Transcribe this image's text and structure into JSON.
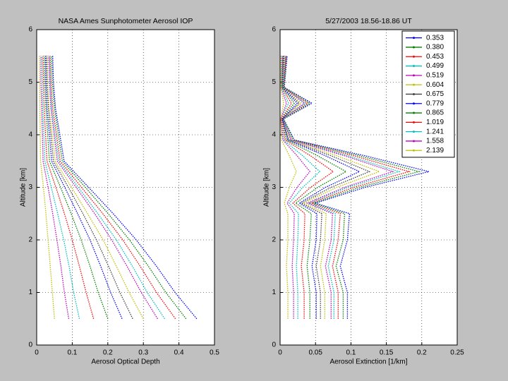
{
  "chart_data": [
    {
      "type": "line",
      "title": "NASA Ames Sunphotometer Aerosol IOP",
      "xlabel": "Aerosol Optical Depth",
      "ylabel": "Altitude [km]",
      "xlim": [
        0,
        0.5
      ],
      "xticks": [
        0,
        0.1,
        0.2,
        0.3,
        0.4,
        0.5
      ],
      "ylim": [
        0,
        6
      ],
      "yticks": [
        0,
        1,
        2,
        3,
        4,
        5,
        6
      ],
      "grid": true,
      "altitude": [
        0.5,
        1,
        1.5,
        2,
        2.5,
        3,
        3.5,
        4,
        4.5,
        5,
        5.5
      ],
      "series": [
        {
          "color": "#0000ff",
          "values": [
            0.45,
            0.389,
            0.337,
            0.28,
            0.215,
            0.146,
            0.077,
            0.065,
            0.053,
            0.047,
            0.045
          ]
        },
        {
          "color": "#008000",
          "values": [
            0.42,
            0.363,
            0.314,
            0.261,
            0.201,
            0.137,
            0.072,
            0.061,
            0.05,
            0.044,
            0.042
          ]
        },
        {
          "color": "#ff0000",
          "values": [
            0.39,
            0.337,
            0.291,
            0.242,
            0.186,
            0.126,
            0.066,
            0.056,
            0.045,
            0.04,
            0.038
          ]
        },
        {
          "color": "#00bfbf",
          "values": [
            0.36,
            0.311,
            0.269,
            0.224,
            0.172,
            0.117,
            0.062,
            0.052,
            0.042,
            0.038,
            0.036
          ]
        },
        {
          "color": "#bf00bf",
          "values": [
            0.34,
            0.294,
            0.254,
            0.211,
            0.163,
            0.111,
            0.058,
            0.049,
            0.04,
            0.036,
            0.034
          ]
        },
        {
          "color": "#bfbf00",
          "values": [
            0.3,
            0.26,
            0.224,
            0.187,
            0.143,
            0.098,
            0.052,
            0.044,
            0.035,
            0.031,
            0.03
          ]
        },
        {
          "color": "#404040",
          "values": [
            0.27,
            0.234,
            0.202,
            0.168,
            0.13,
            0.089,
            0.047,
            0.04,
            0.033,
            0.029,
            0.028
          ]
        },
        {
          "color": "#0000ff",
          "values": [
            0.24,
            0.208,
            0.18,
            0.15,
            0.115,
            0.079,
            0.042,
            0.036,
            0.029,
            0.026,
            0.025
          ]
        },
        {
          "color": "#008000",
          "values": [
            0.2,
            0.173,
            0.15,
            0.125,
            0.097,
            0.067,
            0.036,
            0.031,
            0.026,
            0.023,
            0.022
          ]
        },
        {
          "color": "#ff0000",
          "values": [
            0.16,
            0.139,
            0.12,
            0.1,
            0.078,
            0.054,
            0.029,
            0.025,
            0.021,
            0.019,
            0.018
          ]
        },
        {
          "color": "#00bfbf",
          "values": [
            0.12,
            0.104,
            0.091,
            0.076,
            0.059,
            0.041,
            0.023,
            0.02,
            0.017,
            0.016,
            0.015
          ]
        },
        {
          "color": "#bf00bf",
          "values": [
            0.09,
            0.078,
            0.068,
            0.057,
            0.045,
            0.032,
            0.018,
            0.016,
            0.014,
            0.012,
            0.012
          ]
        },
        {
          "color": "#bfbf00",
          "values": [
            0.05,
            0.044,
            0.038,
            0.032,
            0.026,
            0.019,
            0.011,
            0.01,
            0.009,
            0.008,
            0.008
          ]
        }
      ]
    },
    {
      "type": "line",
      "title": "5/27/2003 18.56-18.86  UT",
      "xlabel": "Aerosol Extinction [1/km]",
      "ylabel": "Altitude [km]",
      "xlim": [
        0,
        0.25
      ],
      "xticks": [
        0,
        0.05,
        0.1,
        0.15,
        0.2,
        0.25
      ],
      "ylim": [
        0,
        6
      ],
      "yticks": [
        0,
        1,
        2,
        3,
        4,
        5,
        6
      ],
      "grid": true,
      "legend": "northeast",
      "altitude": [
        0.5,
        1,
        1.5,
        2,
        2.5,
        2.7,
        3,
        3.3,
        3.6,
        3.9,
        4.3,
        4.6,
        4.9,
        5.5
      ],
      "series": [
        {
          "name": "0.353",
          "color": "#0000ff",
          "values": [
            0.095,
            0.095,
            0.085,
            0.095,
            0.098,
            0.05,
            0.12,
            0.21,
            0.12,
            0.02,
            0.005,
            0.045,
            0.006,
            0.01
          ]
        },
        {
          "name": "0.380",
          "color": "#008000",
          "values": [
            0.089,
            0.089,
            0.079,
            0.089,
            0.091,
            0.047,
            0.112,
            0.196,
            0.112,
            0.019,
            0.005,
            0.042,
            0.006,
            0.009
          ]
        },
        {
          "name": "0.453",
          "color": "#ff0000",
          "values": [
            0.082,
            0.082,
            0.074,
            0.082,
            0.085,
            0.043,
            0.104,
            0.182,
            0.104,
            0.017,
            0.004,
            0.039,
            0.005,
            0.009
          ]
        },
        {
          "name": "0.499",
          "color": "#00bfbf",
          "values": [
            0.076,
            0.076,
            0.068,
            0.076,
            0.078,
            0.04,
            0.096,
            0.168,
            0.096,
            0.016,
            0.004,
            0.036,
            0.005,
            0.008
          ]
        },
        {
          "name": "0.519",
          "color": "#bf00bf",
          "values": [
            0.072,
            0.072,
            0.064,
            0.072,
            0.074,
            0.038,
            0.091,
            0.159,
            0.091,
            0.015,
            0.004,
            0.034,
            0.005,
            0.008
          ]
        },
        {
          "name": "0.604",
          "color": "#bfbf00",
          "values": [
            0.063,
            0.063,
            0.057,
            0.063,
            0.065,
            0.033,
            0.08,
            0.14,
            0.08,
            0.013,
            0.003,
            0.03,
            0.004,
            0.007
          ]
        },
        {
          "name": "0.675",
          "color": "#404040",
          "values": [
            0.057,
            0.057,
            0.051,
            0.057,
            0.059,
            0.03,
            0.072,
            0.126,
            0.072,
            0.012,
            0.003,
            0.027,
            0.004,
            0.006
          ]
        },
        {
          "name": "0.779",
          "color": "#0000ff",
          "values": [
            0.051,
            0.051,
            0.045,
            0.051,
            0.052,
            0.027,
            0.064,
            0.112,
            0.064,
            0.011,
            0.003,
            0.024,
            0.003,
            0.005
          ]
        },
        {
          "name": "0.865",
          "color": "#008000",
          "values": [
            0.042,
            0.042,
            0.038,
            0.042,
            0.044,
            0.022,
            0.053,
            0.093,
            0.053,
            0.009,
            0.002,
            0.02,
            0.003,
            0.004
          ]
        },
        {
          "name": "1.019",
          "color": "#ff0000",
          "values": [
            0.034,
            0.034,
            0.03,
            0.034,
            0.035,
            0.018,
            0.043,
            0.075,
            0.043,
            0.007,
            0.002,
            0.016,
            0.002,
            0.004
          ]
        },
        {
          "name": "1.241",
          "color": "#00bfbf",
          "values": [
            0.025,
            0.025,
            0.023,
            0.025,
            0.026,
            0.013,
            0.032,
            0.056,
            0.032,
            0.005,
            0.001,
            0.012,
            0.002,
            0.003
          ]
        },
        {
          "name": "1.558",
          "color": "#bf00bf",
          "values": [
            0.019,
            0.019,
            0.017,
            0.019,
            0.02,
            0.01,
            0.024,
            0.042,
            0.024,
            0.004,
            0.001,
            0.009,
            0.001,
            0.002
          ]
        },
        {
          "name": "2.139",
          "color": "#bfbf00",
          "values": [
            0.011,
            0.011,
            0.009,
            0.011,
            0.011,
            0.006,
            0.013,
            0.023,
            0.013,
            0.002,
            0.001,
            0.005,
            0.001,
            0.001
          ]
        }
      ]
    }
  ]
}
